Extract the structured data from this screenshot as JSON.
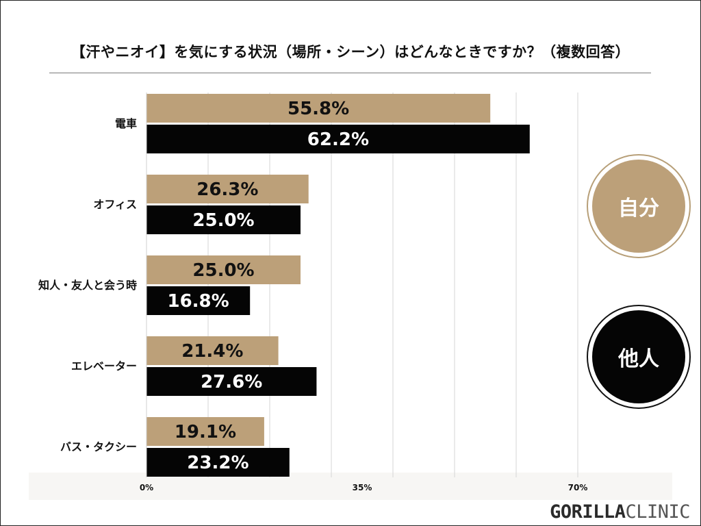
{
  "page": {
    "brand_bold": "GORILLA",
    "brand_light": "CLINIC"
  },
  "colors": {
    "self": "#bca079",
    "other": "#050505",
    "grid": "#d6d6d6"
  },
  "chart_data": {
    "type": "bar",
    "orientation": "horizontal",
    "title": "【汗やニオイ】を気にする状況（場所・シーン）はどんなときですか？（複数回答）",
    "categories": [
      "電車",
      "オフィス",
      "知人・友人と会う時",
      "エレベーター",
      "バス・タクシー"
    ],
    "series": [
      {
        "name": "自分",
        "values": [
          55.8,
          26.3,
          25.0,
          21.4,
          19.1
        ],
        "labels": [
          "55.8%",
          "26.3%",
          "25.0%",
          "21.4%",
          "19.1%"
        ]
      },
      {
        "name": "他人",
        "values": [
          62.2,
          25.0,
          16.8,
          27.6,
          23.2
        ],
        "labels": [
          "62.2%",
          "25.0%",
          "16.8%",
          "27.6%",
          "23.2%"
        ]
      }
    ],
    "xlim": [
      0,
      70
    ],
    "xticks": [
      0,
      35,
      70
    ],
    "xtick_labels": [
      "0%",
      "35%",
      "70%"
    ],
    "gridlines": [
      0,
      10,
      20,
      30,
      40,
      50,
      60,
      70
    ],
    "legend": [
      "自分",
      "他人"
    ],
    "legend_position": "right"
  }
}
